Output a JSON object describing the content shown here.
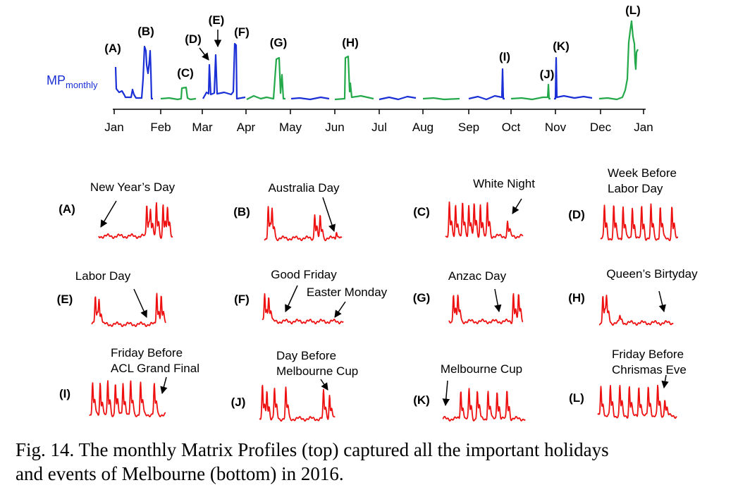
{
  "figure": {
    "axis_label": "MP",
    "axis_label_sub": "monthly",
    "months": [
      "Jan",
      "Feb",
      "Mar",
      "Apr",
      "May",
      "Jun",
      "Jul",
      "Aug",
      "Sep",
      "Oct",
      "Nov",
      "Dec",
      "Jan"
    ],
    "markers": [
      "(A)",
      "(B)",
      "(C)",
      "(D)",
      "(E)",
      "(F)",
      "(G)",
      "(H)",
      "(I)",
      "(J)",
      "(K)",
      "(L)"
    ]
  },
  "panels": [
    {
      "label": "(A)",
      "annotation": [
        "New Year’s Day"
      ]
    },
    {
      "label": "(B)",
      "annotation": [
        "Australia Day"
      ]
    },
    {
      "label": "(C)",
      "annotation": [
        "White Night"
      ]
    },
    {
      "label": "(D)",
      "annotation": [
        "Week Before",
        "Labor Day"
      ]
    },
    {
      "label": "(E)",
      "annotation": [
        "Labor Day"
      ]
    },
    {
      "label": "(F)",
      "annotation": [
        "Good Friday",
        "Easter Monday"
      ]
    },
    {
      "label": "(G)",
      "annotation": [
        "Anzac Day"
      ]
    },
    {
      "label": "(H)",
      "annotation": [
        "Queen’s Birtyday"
      ]
    },
    {
      "label": "(I)",
      "annotation": [
        "Friday Before",
        "ACL Grand Final"
      ]
    },
    {
      "label": "(J)",
      "annotation": [
        "Day Before",
        "Melbourne Cup"
      ]
    },
    {
      "label": "(K)",
      "annotation": [
        "Melbourne Cup"
      ]
    },
    {
      "label": "(L)",
      "annotation": [
        "Friday Before",
        "Chrismas Eve"
      ]
    }
  ],
  "caption": [
    "Fig. 14. The monthly Matrix Profiles (top) captured all the important holidays",
    "and events of Melbourne (bottom) in 2016."
  ]
}
